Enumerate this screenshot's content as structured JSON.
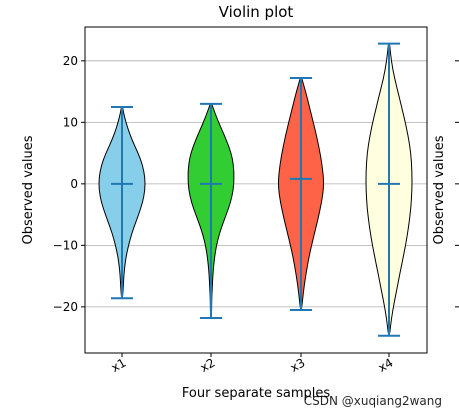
{
  "watermark": "CSDN @xuqiang2wang",
  "chart_data": {
    "type": "violin",
    "title": "Violin plot",
    "xlabel": "Four separate samples",
    "ylabel": "Observed values",
    "right_ylabel": "Observed values",
    "ylim": [
      -27.5,
      25.5
    ],
    "yticks": [
      20,
      10,
      0,
      -10,
      -20
    ],
    "ytick_labels": [
      "20",
      "10",
      "0",
      "−10",
      "−20"
    ],
    "grid": "horizontal",
    "categories": [
      "x1",
      "x2",
      "x3",
      "x4"
    ],
    "series": [
      {
        "category": "x1",
        "color": "#87ceeb",
        "min": -18.6,
        "max": 12.5,
        "median": 0.0,
        "profile": [
          [
            12.5,
            0.02
          ],
          [
            11,
            0.1
          ],
          [
            9,
            0.25
          ],
          [
            7,
            0.45
          ],
          [
            5,
            0.7
          ],
          [
            3,
            0.9
          ],
          [
            1,
            1.0
          ],
          [
            -1,
            1.0
          ],
          [
            -3,
            0.9
          ],
          [
            -5,
            0.72
          ],
          [
            -7,
            0.52
          ],
          [
            -9,
            0.35
          ],
          [
            -11,
            0.22
          ],
          [
            -13,
            0.13
          ],
          [
            -15,
            0.08
          ],
          [
            -17,
            0.05
          ],
          [
            -18.6,
            0.02
          ]
        ]
      },
      {
        "category": "x2",
        "color": "#32cd32",
        "min": -21.8,
        "max": 13.0,
        "median": 0.0,
        "profile": [
          [
            13,
            0.03
          ],
          [
            11,
            0.22
          ],
          [
            9,
            0.45
          ],
          [
            7,
            0.68
          ],
          [
            5,
            0.88
          ],
          [
            3,
            0.98
          ],
          [
            1,
            1.0
          ],
          [
            -1,
            0.97
          ],
          [
            -3,
            0.85
          ],
          [
            -5,
            0.66
          ],
          [
            -7,
            0.46
          ],
          [
            -9,
            0.3
          ],
          [
            -11,
            0.19
          ],
          [
            -13,
            0.12
          ],
          [
            -15,
            0.08
          ],
          [
            -17,
            0.05
          ],
          [
            -19,
            0.03
          ],
          [
            -21.8,
            0.02
          ]
        ]
      },
      {
        "category": "x3",
        "color": "#ff6347",
        "min": -20.5,
        "max": 17.2,
        "median": 0.8,
        "profile": [
          [
            17.2,
            0.03
          ],
          [
            15,
            0.2
          ],
          [
            12,
            0.4
          ],
          [
            9,
            0.6
          ],
          [
            6,
            0.78
          ],
          [
            3,
            0.92
          ],
          [
            0,
            1.0
          ],
          [
            -3,
            0.9
          ],
          [
            -6,
            0.72
          ],
          [
            -9,
            0.52
          ],
          [
            -12,
            0.34
          ],
          [
            -15,
            0.2
          ],
          [
            -18,
            0.09
          ],
          [
            -20.5,
            0.02
          ]
        ]
      },
      {
        "category": "x4",
        "color": "#ffffe0",
        "min": -24.7,
        "max": 22.8,
        "median": 0.0,
        "profile": [
          [
            22.8,
            0.02
          ],
          [
            20,
            0.1
          ],
          [
            17,
            0.25
          ],
          [
            14,
            0.45
          ],
          [
            11,
            0.65
          ],
          [
            8,
            0.82
          ],
          [
            5,
            0.95
          ],
          [
            2,
            1.0
          ],
          [
            -1,
            1.0
          ],
          [
            -4,
            0.95
          ],
          [
            -7,
            0.85
          ],
          [
            -10,
            0.72
          ],
          [
            -13,
            0.56
          ],
          [
            -16,
            0.4
          ],
          [
            -19,
            0.24
          ],
          [
            -22,
            0.1
          ],
          [
            -24.7,
            0.02
          ]
        ]
      }
    ]
  }
}
